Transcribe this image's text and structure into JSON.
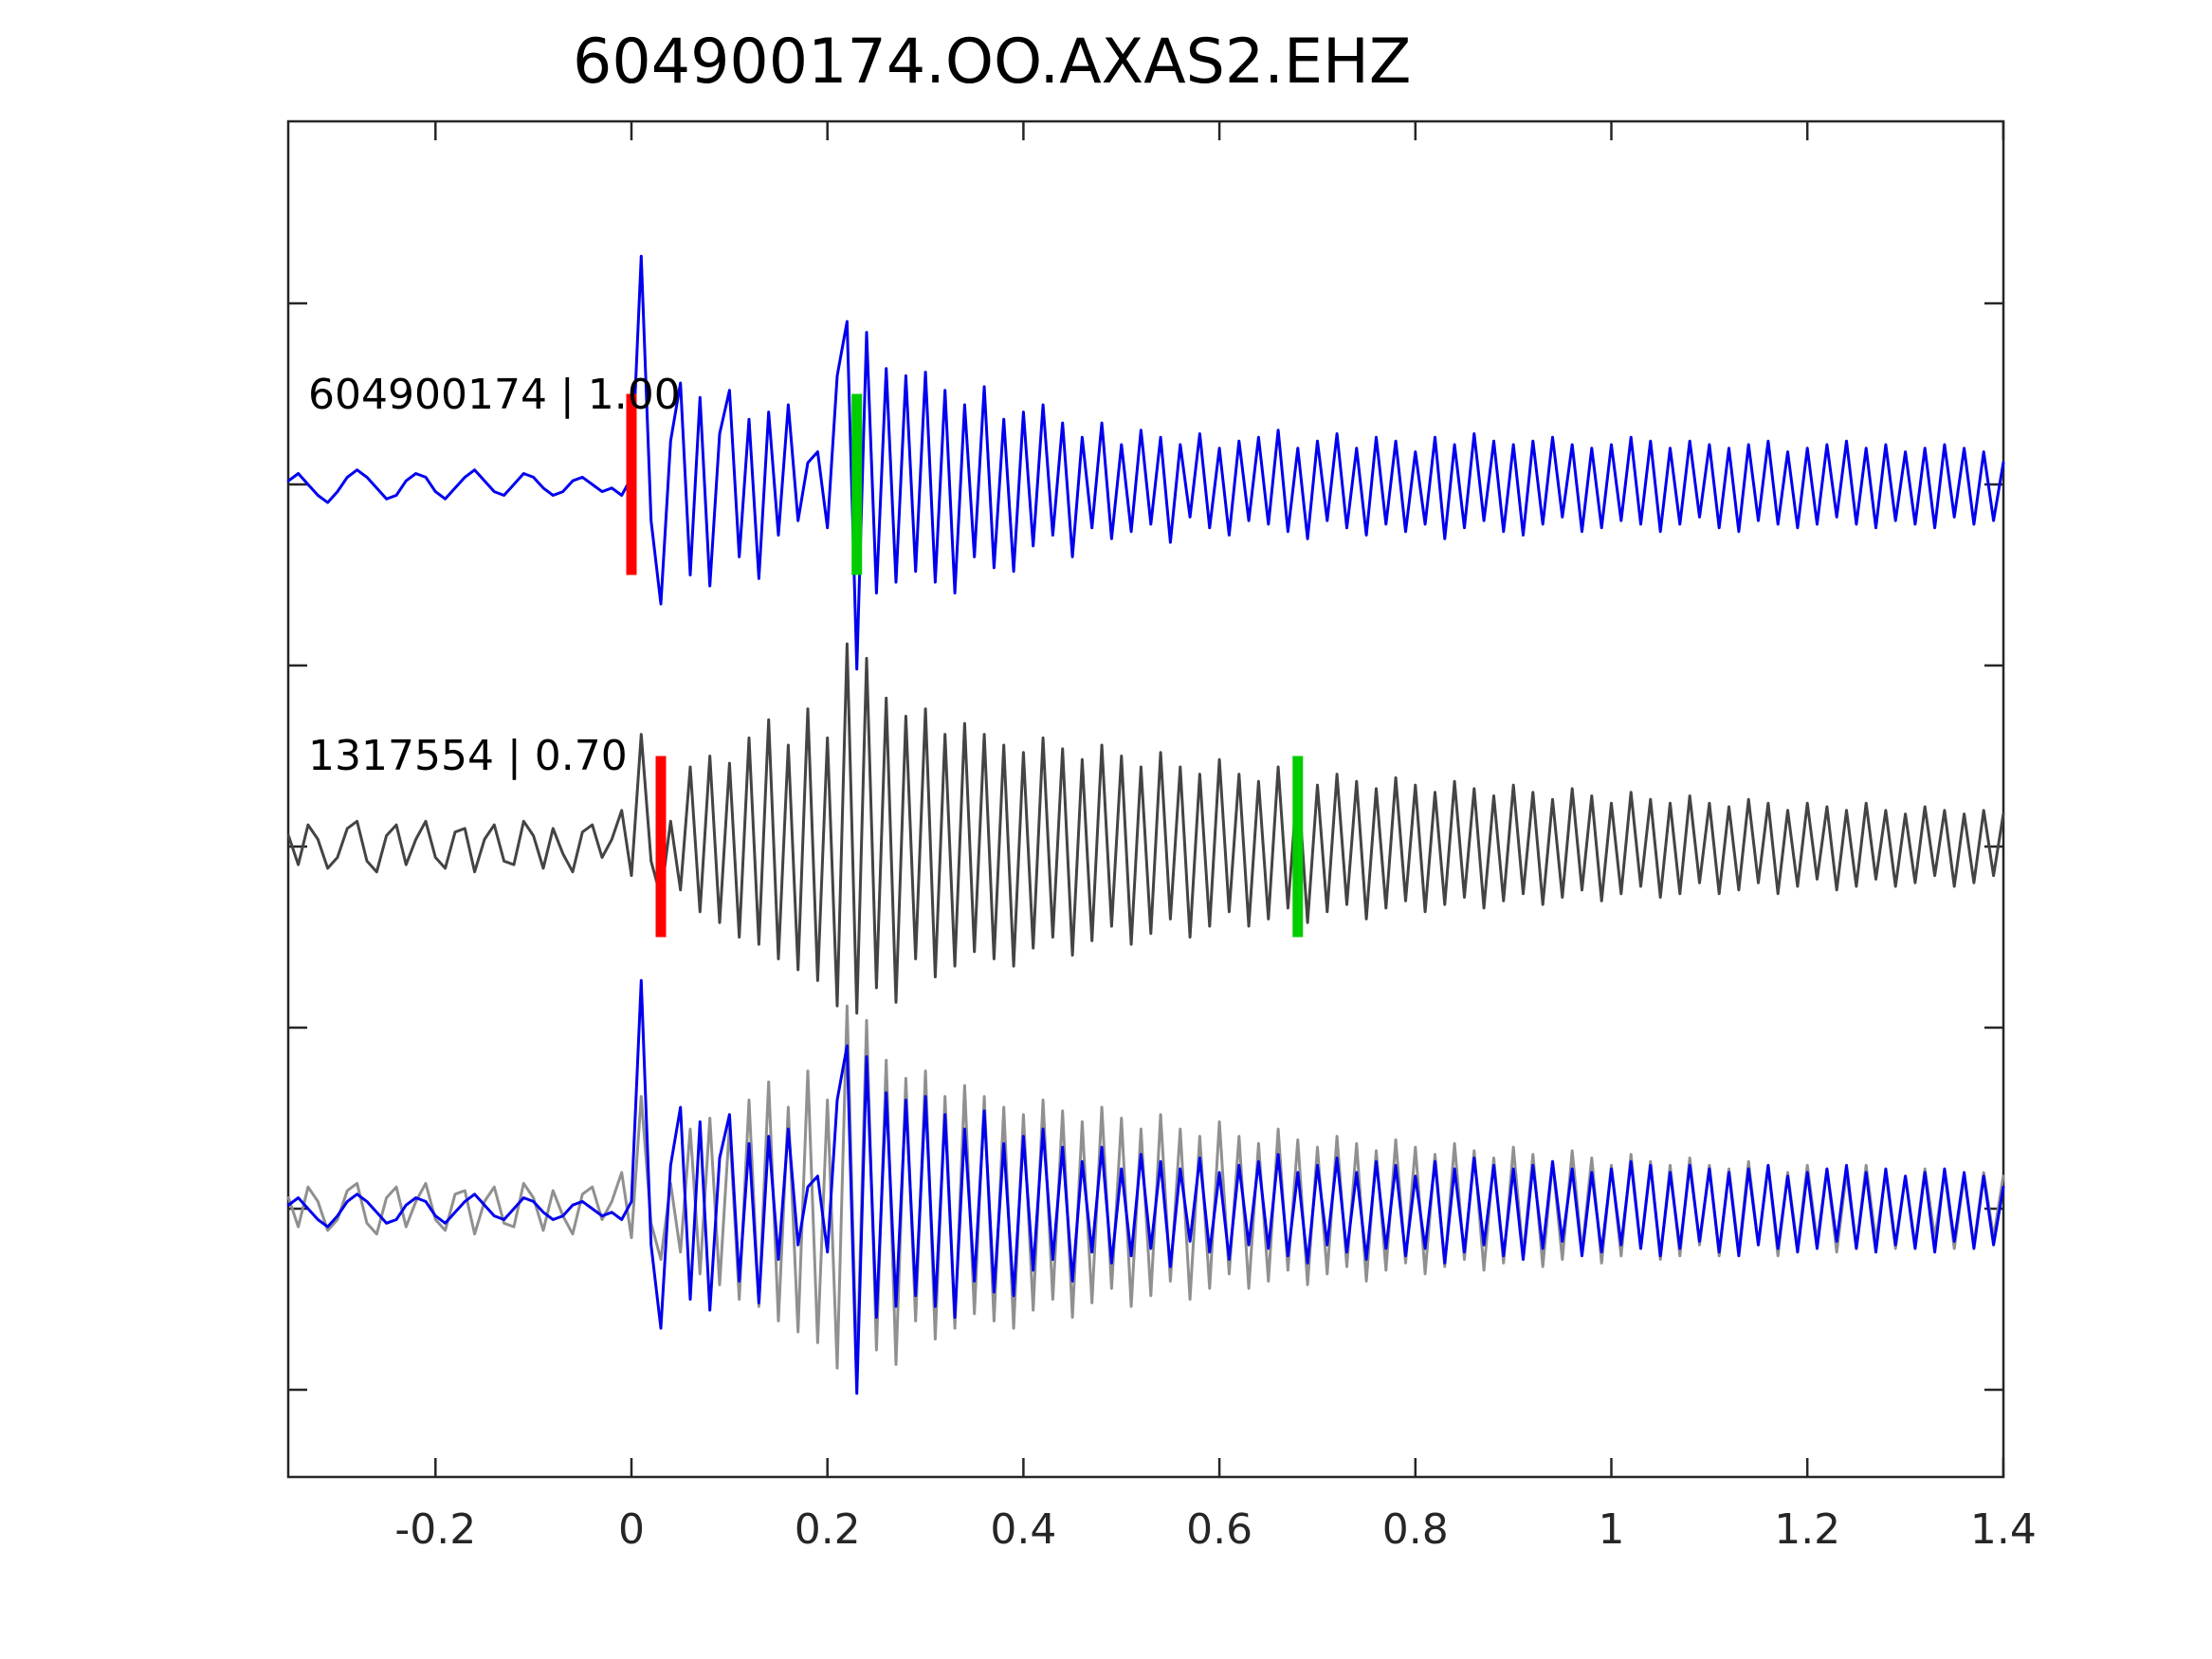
{
  "figure": {
    "title": "604900174.OO.AXAS2.EHZ"
  },
  "chart_data": {
    "type": "line",
    "title": "604900174.OO.AXAS2.EHZ",
    "xlabel": "",
    "ylabel": "",
    "xlim": [
      -0.35,
      1.4
    ],
    "grid": false,
    "legend": "none",
    "x_ticks": {
      "values": [
        -0.2,
        0,
        0.2,
        0.4,
        0.6,
        0.8,
        1,
        1.2,
        1.4
      ],
      "labels": [
        "-0.2",
        "0",
        "0.2",
        "0.4",
        "0.6",
        "0.8",
        "1",
        "1.2",
        "1.4"
      ]
    },
    "y_ticks_unlabeled_offsets": [
      0.5,
      0,
      -0.5,
      -1,
      -1.5,
      -2,
      -2.5
    ],
    "sampling": {
      "t_start": -0.35,
      "dt": 0.01,
      "n": 176
    },
    "colors": {
      "trace1": "#0000EE",
      "trace2": "#444444",
      "overlay_gray": "#909090",
      "red_pick": "#FF0000",
      "green_pick": "#00CC00",
      "spine": "#262626",
      "text": "#000000"
    },
    "traces": [
      {
        "id": "604900174",
        "label": "604900174 | 1.00",
        "correlation": "1.00",
        "color": "#0000EE",
        "offset": 0,
        "values": [
          0.01,
          0.03,
          0.0,
          -0.03,
          -0.05,
          -0.02,
          0.02,
          0.04,
          0.02,
          -0.01,
          -0.04,
          -0.03,
          0.01,
          0.03,
          0.02,
          -0.02,
          -0.04,
          -0.01,
          0.02,
          0.04,
          0.01,
          -0.02,
          -0.03,
          0.0,
          0.03,
          0.02,
          -0.01,
          -0.03,
          -0.02,
          0.01,
          0.02,
          0.0,
          -0.02,
          -0.01,
          -0.03,
          0.02,
          0.63,
          -0.1,
          -0.33,
          0.12,
          0.28,
          -0.25,
          0.24,
          -0.28,
          0.14,
          0.26,
          -0.2,
          0.18,
          -0.26,
          0.2,
          -0.14,
          0.22,
          -0.1,
          0.06,
          0.09,
          -0.12,
          0.3,
          0.45,
          -0.51,
          0.42,
          -0.3,
          0.32,
          -0.27,
          0.3,
          -0.24,
          0.31,
          -0.27,
          0.26,
          -0.3,
          0.22,
          -0.2,
          0.27,
          -0.23,
          0.18,
          -0.24,
          0.2,
          -0.17,
          0.22,
          -0.14,
          0.17,
          -0.2,
          0.13,
          -0.12,
          0.17,
          -0.15,
          0.11,
          -0.13,
          0.15,
          -0.11,
          0.13,
          -0.16,
          0.11,
          -0.09,
          0.14,
          -0.12,
          0.1,
          -0.14,
          0.12,
          -0.1,
          0.13,
          -0.11,
          0.15,
          -0.13,
          0.1,
          -0.15,
          0.12,
          -0.1,
          0.14,
          -0.12,
          0.1,
          -0.14,
          0.13,
          -0.11,
          0.12,
          -0.13,
          0.09,
          -0.11,
          0.13,
          -0.15,
          0.11,
          -0.12,
          0.14,
          -0.1,
          0.12,
          -0.13,
          0.11,
          -0.14,
          0.12,
          -0.11,
          0.13,
          -0.09,
          0.11,
          -0.13,
          0.1,
          -0.12,
          0.11,
          -0.1,
          0.13,
          -0.11,
          0.12,
          -0.13,
          0.1,
          -0.11,
          0.12,
          -0.09,
          0.11,
          -0.12,
          0.1,
          -0.13,
          0.11,
          -0.1,
          0.12,
          -0.11,
          0.09,
          -0.12,
          0.1,
          -0.11,
          0.11,
          -0.09,
          0.12,
          -0.11,
          0.1,
          -0.12,
          0.11,
          -0.1,
          0.09,
          -0.11,
          0.1,
          -0.12,
          0.11,
          -0.09,
          0.1,
          -0.11,
          0.09,
          -0.1,
          0.06
        ]
      },
      {
        "id": "1317554",
        "label": "1317554 | 0.70",
        "correlation": "0.70",
        "color": "#444444",
        "offset": -1,
        "values": [
          0.03,
          -0.05,
          0.06,
          0.02,
          -0.06,
          -0.03,
          0.05,
          0.07,
          -0.04,
          -0.07,
          0.03,
          0.06,
          -0.05,
          0.02,
          0.07,
          -0.03,
          -0.06,
          0.04,
          0.05,
          -0.07,
          0.02,
          0.06,
          -0.04,
          -0.05,
          0.07,
          0.03,
          -0.06,
          0.05,
          -0.02,
          -0.07,
          0.04,
          0.06,
          -0.03,
          0.02,
          0.1,
          -0.08,
          0.31,
          -0.04,
          -0.14,
          0.07,
          -0.12,
          0.22,
          -0.18,
          0.25,
          -0.21,
          0.23,
          -0.25,
          0.3,
          -0.27,
          0.35,
          -0.31,
          0.28,
          -0.34,
          0.38,
          -0.37,
          0.3,
          -0.44,
          0.56,
          -0.46,
          0.52,
          -0.39,
          0.41,
          -0.43,
          0.36,
          -0.31,
          0.38,
          -0.36,
          0.31,
          -0.33,
          0.34,
          -0.29,
          0.31,
          -0.31,
          0.28,
          -0.33,
          0.26,
          -0.28,
          0.3,
          -0.25,
          0.27,
          -0.3,
          0.24,
          -0.26,
          0.28,
          -0.22,
          0.25,
          -0.27,
          0.22,
          -0.24,
          0.26,
          -0.2,
          0.22,
          -0.25,
          0.2,
          -0.22,
          0.24,
          -0.18,
          0.2,
          -0.22,
          0.18,
          -0.2,
          0.22,
          -0.17,
          0.19,
          -0.21,
          0.17,
          -0.18,
          0.2,
          -0.16,
          0.18,
          -0.2,
          0.16,
          -0.17,
          0.19,
          -0.15,
          0.17,
          -0.18,
          0.15,
          -0.16,
          0.18,
          -0.14,
          0.16,
          -0.17,
          0.14,
          -0.15,
          0.17,
          -0.13,
          0.15,
          -0.16,
          0.13,
          -0.14,
          0.16,
          -0.12,
          0.14,
          -0.15,
          0.12,
          -0.13,
          0.15,
          -0.11,
          0.13,
          -0.14,
          0.12,
          -0.13,
          0.14,
          -0.1,
          0.12,
          -0.13,
          0.11,
          -0.12,
          0.13,
          -0.1,
          0.12,
          -0.13,
          0.1,
          -0.11,
          0.12,
          -0.09,
          0.11,
          -0.12,
          0.1,
          -0.11,
          0.12,
          -0.09,
          0.1,
          -0.11,
          0.09,
          -0.1,
          0.11,
          -0.08,
          0.1,
          -0.11,
          0.09,
          -0.1,
          0.1,
          -0.08,
          0.09
        ]
      }
    ],
    "overlay": {
      "offset": -2,
      "series": [
        {
          "trace_index": 1,
          "color": "#909090"
        },
        {
          "trace_index": 0,
          "color": "#0000EE"
        }
      ]
    },
    "picks": [
      {
        "trace_index": 0,
        "kind": "pick-red",
        "color": "#FF0000",
        "t": 0.0
      },
      {
        "trace_index": 0,
        "kind": "pick-green",
        "color": "#00CC00",
        "t": 0.23
      },
      {
        "trace_index": 1,
        "kind": "pick-red",
        "color": "#FF0000",
        "t": 0.03
      },
      {
        "trace_index": 1,
        "kind": "pick-green",
        "color": "#00CC00",
        "t": 0.68
      }
    ],
    "pick_half_height_units": 0.25
  }
}
